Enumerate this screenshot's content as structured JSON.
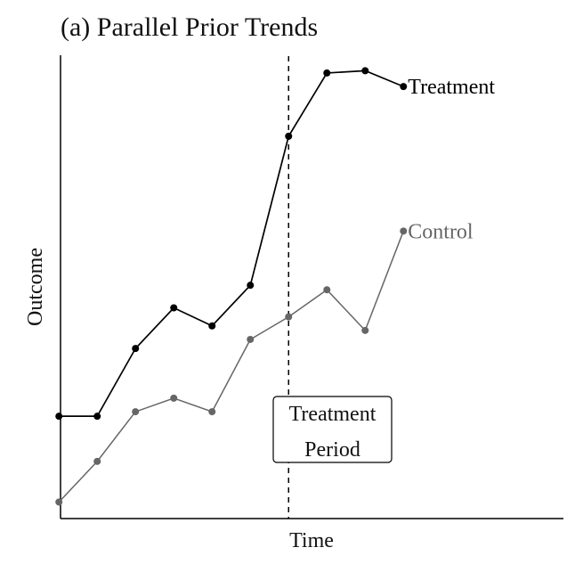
{
  "chart_data": {
    "type": "line",
    "title": "(a) Parallel Prior Trends",
    "xlabel": "Time",
    "ylabel": "Outcome",
    "x": [
      1,
      2,
      3,
      4,
      5,
      6,
      7,
      8,
      9,
      10
    ],
    "xlim": [
      0.5,
      12.5
    ],
    "ylim": [
      0,
      10.6
    ],
    "grid": false,
    "series": [
      {
        "name": "Treatment",
        "color": "#000000",
        "values": [
          2.4,
          2.4,
          3.9,
          4.8,
          4.4,
          5.3,
          8.6,
          10.0,
          10.05,
          9.7
        ]
      },
      {
        "name": "Control",
        "color": "#666666",
        "values": [
          0.5,
          1.4,
          2.5,
          2.8,
          2.5,
          4.1,
          4.6,
          5.2,
          4.3,
          6.5
        ]
      }
    ],
    "vline": {
      "x": 7,
      "style": "dashed"
    },
    "annotation": {
      "lines": [
        "Treatment",
        "Period"
      ],
      "x": 7
    }
  }
}
